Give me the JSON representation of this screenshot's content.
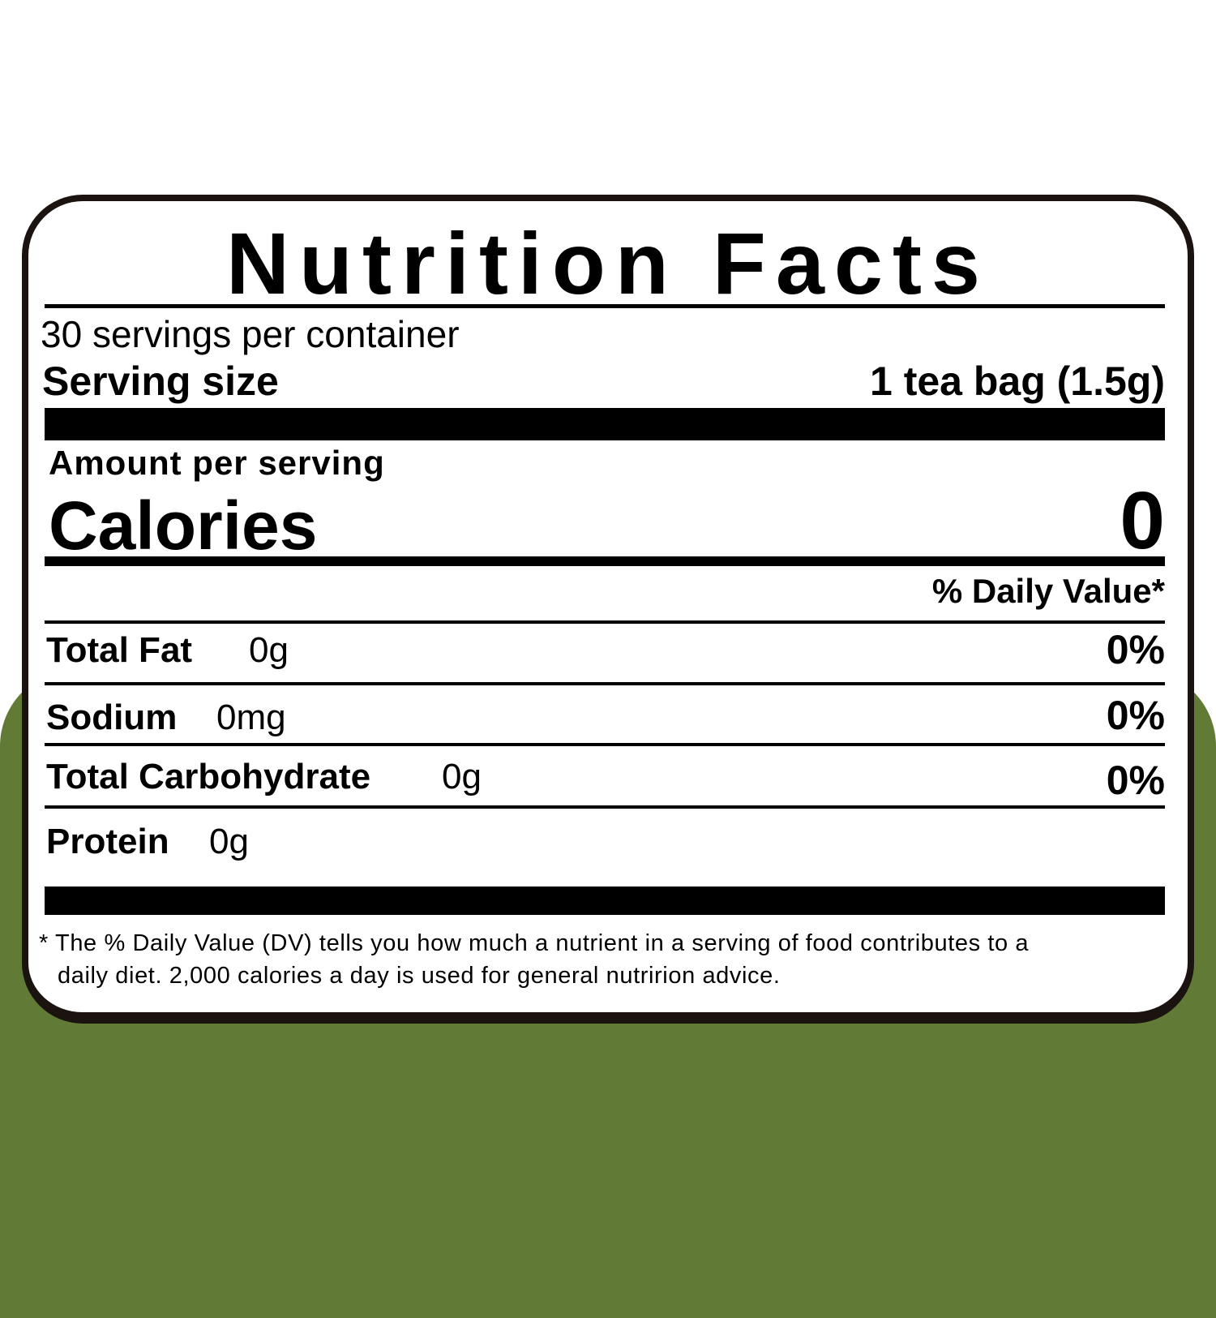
{
  "colors": {
    "background_green": "#617a35",
    "border": "#1a1310"
  },
  "label": {
    "title": "Nutrition Facts",
    "servings_per_container": "30 servings per container",
    "serving_size_label": "Serving size",
    "serving_size_value": "1 tea bag (1.5g)",
    "amount_per_serving": "Amount per serving",
    "calories_label": "Calories",
    "calories_value": "0",
    "daily_value_header": "% Daily Value*",
    "nutrients": [
      {
        "name": "Total Fat",
        "amount": "0g",
        "dv": "0%"
      },
      {
        "name": "Sodium",
        "amount": "0mg",
        "dv": "0%"
      },
      {
        "name": "Total Carbohydrate",
        "amount": "0g",
        "dv": "0%"
      },
      {
        "name": "Protein",
        "amount": "0g"
      }
    ],
    "footnote_line1": "* The % Daily Value (DV) tells you how much a nutrient in a serving of food contributes to a",
    "footnote_line2": "daily diet. 2,000 calories a day is used for general nutririon advice."
  }
}
